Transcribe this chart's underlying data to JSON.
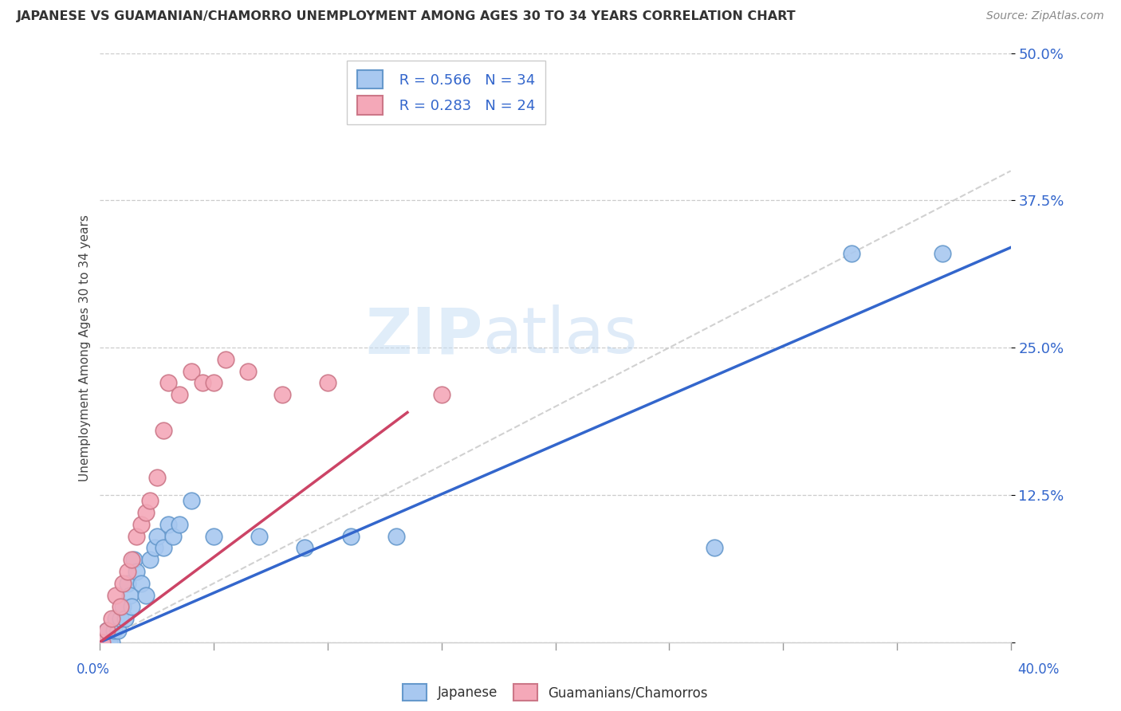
{
  "title": "JAPANESE VS GUAMANIAN/CHAMORRO UNEMPLOYMENT AMONG AGES 30 TO 34 YEARS CORRELATION CHART",
  "source": "Source: ZipAtlas.com",
  "ylabel": "Unemployment Among Ages 30 to 34 years",
  "xlim": [
    0.0,
    0.4
  ],
  "ylim": [
    0.0,
    0.5
  ],
  "yticks": [
    0.0,
    0.125,
    0.25,
    0.375,
    0.5
  ],
  "ytick_labels": [
    "",
    "12.5%",
    "25.0%",
    "37.5%",
    "50.0%"
  ],
  "legend_r1": "R = 0.566",
  "legend_n1": "N = 34",
  "legend_r2": "R = 0.283",
  "legend_n2": "N = 24",
  "japanese_color": "#a8c8f0",
  "japanese_edge_color": "#6699cc",
  "guamanian_color": "#f4a8b8",
  "guamanian_edge_color": "#cc7788",
  "japanese_line_color": "#3366cc",
  "guamanian_line_color": "#cc4466",
  "ref_line_color": "#cccccc",
  "japanese_line_x": [
    0.0,
    0.4
  ],
  "japanese_line_y": [
    0.0,
    0.335
  ],
  "guamanian_line_x": [
    0.0,
    0.135
  ],
  "guamanian_line_y": [
    0.0,
    0.195
  ],
  "japanese_points_x": [
    0.001,
    0.002,
    0.003,
    0.004,
    0.005,
    0.006,
    0.007,
    0.008,
    0.009,
    0.01,
    0.011,
    0.012,
    0.013,
    0.014,
    0.015,
    0.016,
    0.018,
    0.02,
    0.022,
    0.024,
    0.025,
    0.028,
    0.03,
    0.032,
    0.035,
    0.04,
    0.05,
    0.07,
    0.09,
    0.11,
    0.13,
    0.27,
    0.33,
    0.37
  ],
  "japanese_points_y": [
    0.0,
    0.0,
    0.01,
    0.0,
    0.0,
    0.01,
    0.02,
    0.01,
    0.02,
    0.03,
    0.02,
    0.05,
    0.04,
    0.03,
    0.07,
    0.06,
    0.05,
    0.04,
    0.07,
    0.08,
    0.09,
    0.08,
    0.1,
    0.09,
    0.1,
    0.12,
    0.09,
    0.09,
    0.08,
    0.09,
    0.09,
    0.08,
    0.33,
    0.33
  ],
  "guamanian_points_x": [
    0.001,
    0.003,
    0.005,
    0.007,
    0.009,
    0.01,
    0.012,
    0.014,
    0.016,
    0.018,
    0.02,
    0.022,
    0.025,
    0.028,
    0.03,
    0.035,
    0.04,
    0.045,
    0.05,
    0.055,
    0.065,
    0.08,
    0.1,
    0.15
  ],
  "guamanian_points_y": [
    0.0,
    0.01,
    0.02,
    0.04,
    0.03,
    0.05,
    0.06,
    0.07,
    0.09,
    0.1,
    0.11,
    0.12,
    0.14,
    0.18,
    0.22,
    0.21,
    0.23,
    0.22,
    0.22,
    0.24,
    0.23,
    0.21,
    0.22,
    0.21
  ]
}
